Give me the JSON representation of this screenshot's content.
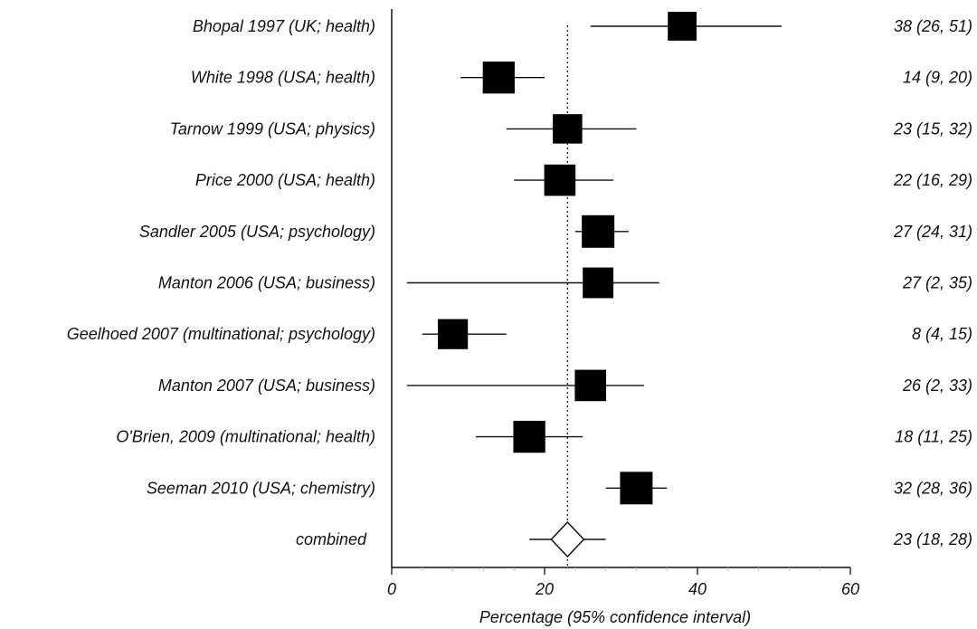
{
  "chart_data": {
    "type": "forest",
    "xlabel": "Percentage (95% confidence interval)",
    "xlim": [
      0,
      60
    ],
    "xticks": [
      "0",
      "20",
      "40",
      "60"
    ],
    "minor_xticks": [
      4,
      8,
      12,
      16,
      24,
      28,
      32,
      36,
      44,
      48,
      52,
      56
    ],
    "reference_line": 23,
    "studies": [
      {
        "label": "Bhopal 1997 (UK; health)",
        "estimate": 38,
        "lower": 26,
        "upper": 51,
        "ci_text": "38 (26, 51)",
        "weight": 0.7
      },
      {
        "label": "White 1998 (USA; health)",
        "estimate": 14,
        "lower": 9,
        "upper": 20,
        "ci_text": "14 (9, 20)",
        "weight": 0.95
      },
      {
        "label": "Tarnow 1999 (USA; physics)",
        "estimate": 23,
        "lower": 15,
        "upper": 32,
        "ci_text": "23 (15, 32)",
        "weight": 0.75
      },
      {
        "label": "Price 2000 (USA; health)",
        "estimate": 22,
        "lower": 16,
        "upper": 29,
        "ci_text": "22 (16, 29)",
        "weight": 0.9
      },
      {
        "label": "Sandler 2005 (USA; psychology)",
        "estimate": 27,
        "lower": 24,
        "upper": 31,
        "ci_text": "27 (24, 31)",
        "weight": 1.0
      },
      {
        "label": "Manton 2006 (USA; business)",
        "estimate": 27,
        "lower": 2,
        "upper": 35,
        "ci_text": "27 (2, 35)",
        "weight": 0.85
      },
      {
        "label": "Geelhoed 2007 (multinational; psychology)",
        "estimate": 8,
        "lower": 4,
        "upper": 15,
        "ci_text": "8 (4, 15)",
        "weight": 0.8
      },
      {
        "label": "Manton 2007 (USA; business)",
        "estimate": 26,
        "lower": 2,
        "upper": 33,
        "ci_text": "26 (2, 33)",
        "weight": 0.9
      },
      {
        "label": "O'Brien, 2009 (multinational; health)",
        "estimate": 18,
        "lower": 11,
        "upper": 25,
        "ci_text": "18 (11, 25)",
        "weight": 0.95
      },
      {
        "label": "Seeman 2010 (USA; chemistry)",
        "estimate": 32,
        "lower": 28,
        "upper": 36,
        "ci_text": "32 (28, 36)",
        "weight": 1.0
      }
    ],
    "combined": {
      "label": "combined",
      "estimate": 23,
      "lower": 18,
      "upper": 28,
      "ci_text": "23 (18, 28)"
    }
  }
}
